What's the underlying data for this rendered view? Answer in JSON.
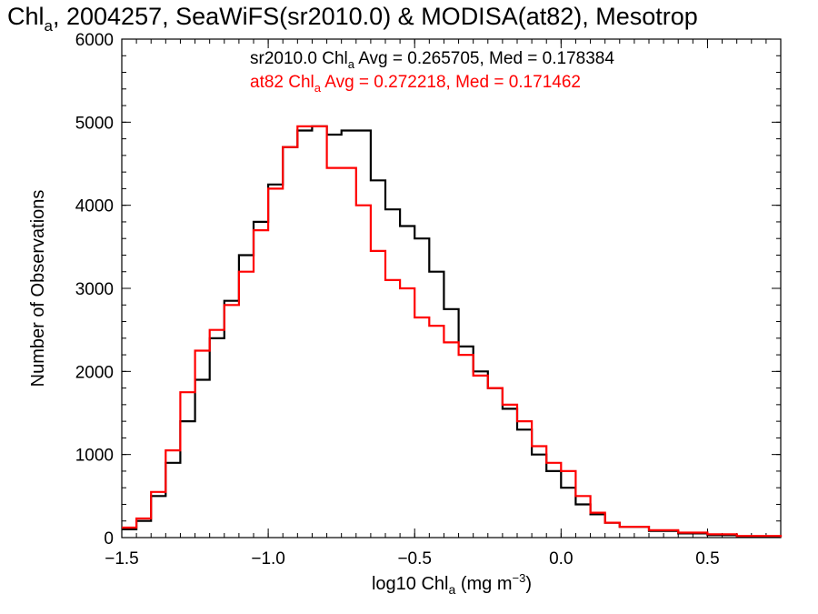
{
  "chart_data": {
    "type": "line",
    "title": {
      "main": "Chl",
      "sub": "a",
      "rest": ", 2004257, SeaWiFS(sr2010.0) & MODISA(at82), Mesotrop"
    },
    "xlabel": {
      "main": "log10 Chl",
      "sub": "a",
      "rest": " (mg m",
      "sup": "−3",
      "end": ")"
    },
    "ylabel": "Number of Observations",
    "xlim": [
      -1.5,
      0.75
    ],
    "ylim": [
      0,
      6000
    ],
    "x_ticks": [
      {
        "value": -1.5,
        "label": "−1.5"
      },
      {
        "value": -1.0,
        "label": "−1.0"
      },
      {
        "value": -0.5,
        "label": "−0.5"
      },
      {
        "value": 0.0,
        "label": "0.0"
      },
      {
        "value": 0.5,
        "label": "0.5"
      }
    ],
    "y_ticks": [
      {
        "value": 0,
        "label": "0"
      },
      {
        "value": 1000,
        "label": "1000"
      },
      {
        "value": 2000,
        "label": "2000"
      },
      {
        "value": 3000,
        "label": "3000"
      },
      {
        "value": 4000,
        "label": "4000"
      },
      {
        "value": 5000,
        "label": "5000"
      },
      {
        "value": 6000,
        "label": "6000"
      }
    ],
    "grid": false,
    "annotations": [
      {
        "pre": "sr2010.0 Chl",
        "sub": "a",
        "post": " Avg = 0.265705, Med = 0.178384",
        "color": "#000000"
      },
      {
        "pre": "at82 Chl",
        "sub": "a",
        "post": " Avg = 0.272218, Med = 0.171462",
        "color": "#ff0000"
      }
    ],
    "series": [
      {
        "color": "#000000",
        "x": [
          -1.5,
          -1.45,
          -1.4,
          -1.35,
          -1.3,
          -1.25,
          -1.2,
          -1.15,
          -1.1,
          -1.05,
          -1.0,
          -0.95,
          -0.9,
          -0.85,
          -0.8,
          -0.75,
          -0.7,
          -0.65,
          -0.6,
          -0.55,
          -0.5,
          -0.45,
          -0.4,
          -0.35,
          -0.3,
          -0.25,
          -0.2,
          -0.15,
          -0.1,
          -0.05,
          0.0,
          0.05,
          0.1,
          0.15,
          0.2,
          0.3,
          0.4,
          0.5,
          0.6,
          0.75
        ],
        "y": [
          100,
          200,
          500,
          900,
          1400,
          1900,
          2400,
          2850,
          3400,
          3800,
          4250,
          4700,
          4900,
          4950,
          4850,
          4900,
          4900,
          4300,
          3950,
          3750,
          3600,
          3200,
          2750,
          2300,
          2000,
          1800,
          1550,
          1300,
          1000,
          800,
          600,
          400,
          280,
          180,
          130,
          80,
          50,
          30,
          15,
          5
        ]
      },
      {
        "color": "#ff0000",
        "x": [
          -1.5,
          -1.45,
          -1.4,
          -1.35,
          -1.3,
          -1.25,
          -1.2,
          -1.15,
          -1.1,
          -1.05,
          -1.0,
          -0.95,
          -0.9,
          -0.85,
          -0.8,
          -0.75,
          -0.7,
          -0.65,
          -0.6,
          -0.55,
          -0.5,
          -0.45,
          -0.4,
          -0.35,
          -0.3,
          -0.25,
          -0.2,
          -0.15,
          -0.1,
          -0.05,
          0.0,
          0.05,
          0.1,
          0.15,
          0.2,
          0.3,
          0.4,
          0.5,
          0.6,
          0.75
        ],
        "y": [
          120,
          230,
          550,
          1050,
          1750,
          2250,
          2500,
          2800,
          3200,
          3700,
          4200,
          4700,
          4950,
          4950,
          4450,
          4450,
          4000,
          3450,
          3100,
          3000,
          2650,
          2550,
          2350,
          2200,
          1950,
          1800,
          1600,
          1400,
          1100,
          900,
          800,
          500,
          300,
          180,
          130,
          90,
          60,
          40,
          20,
          5
        ]
      }
    ]
  }
}
